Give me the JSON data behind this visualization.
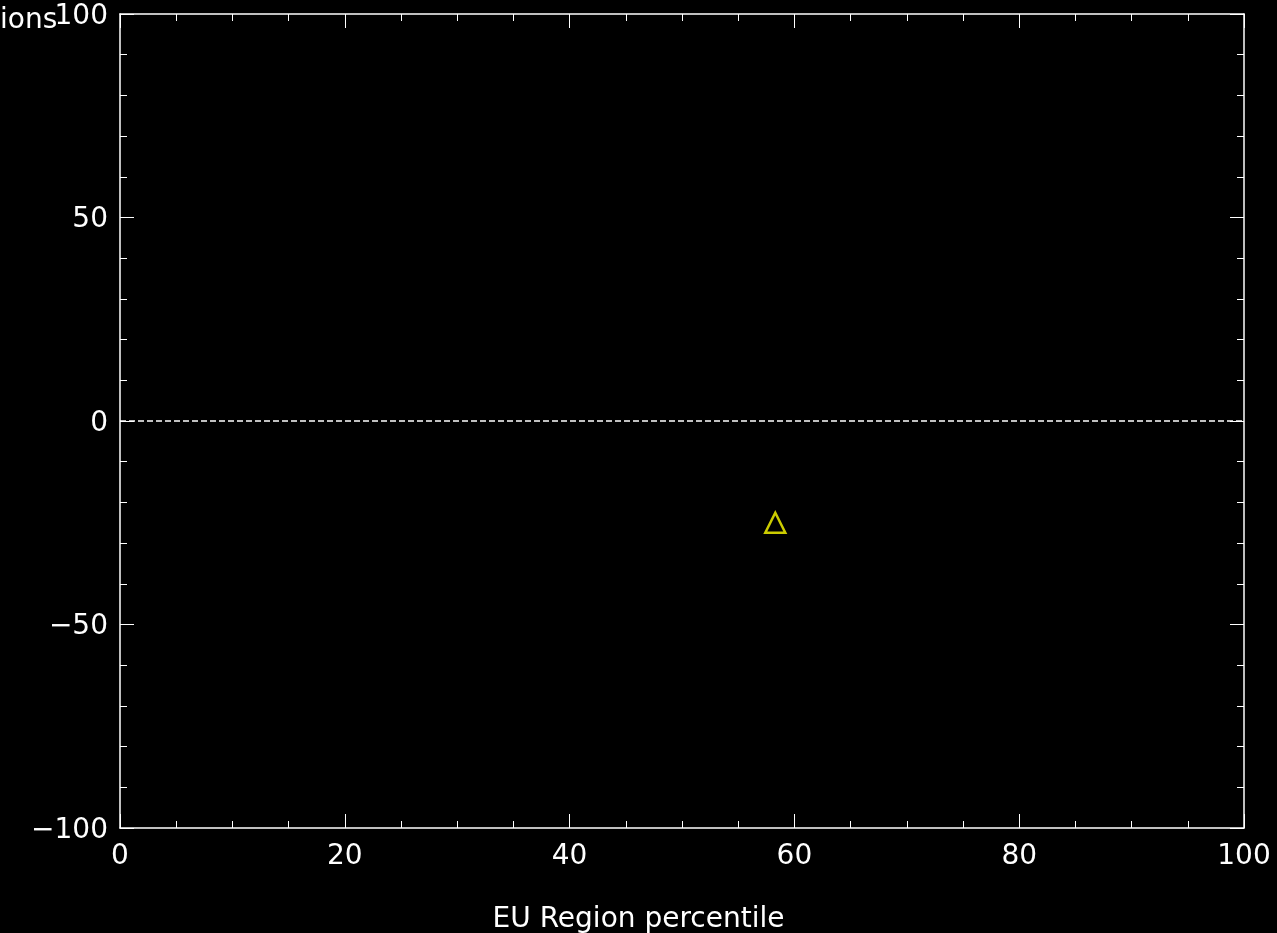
{
  "chart_data": {
    "type": "scatter",
    "ylabel": "ions",
    "xlabel": "EU Region percentile",
    "x": [
      58.3
    ],
    "values": [
      -25
    ],
    "color": "#ffff00",
    "marker": "triangle",
    "xlim": [
      0,
      100
    ],
    "xticks": [
      0,
      20,
      40,
      60,
      80,
      100
    ],
    "ylim": [
      -100,
      100
    ],
    "yticks": [
      -100,
      -50,
      0,
      50,
      100
    ],
    "ref_lines": [
      {
        "axis": "y",
        "value": 0,
        "color": "#ffffff",
        "line_style": "dashed"
      }
    ]
  }
}
